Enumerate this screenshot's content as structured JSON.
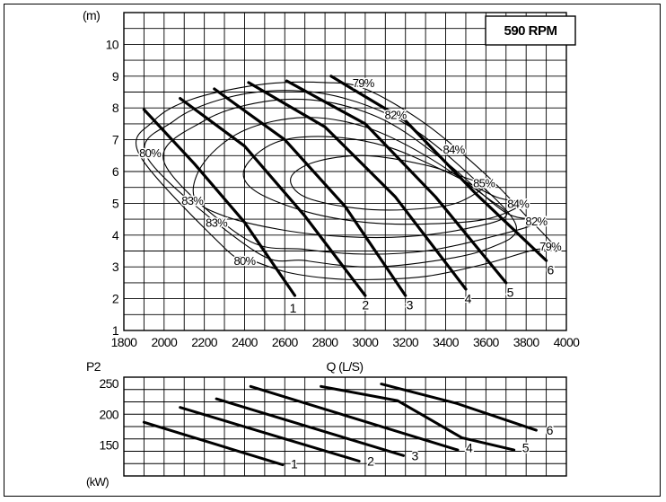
{
  "chart_data": [
    {
      "type": "line",
      "title": "",
      "annotation": "590 RPM",
      "xlabel": "Q (L/S)",
      "ylabel": "(m)",
      "xlim": [
        1800,
        4000
      ],
      "ylim": [
        1,
        11
      ],
      "x_ticks": [
        1800,
        2000,
        2200,
        2400,
        2600,
        2800,
        3000,
        3200,
        3400,
        3600,
        3800,
        4000
      ],
      "y_ticks": [
        1,
        2,
        3,
        4,
        5,
        6,
        7,
        8,
        9,
        10
      ],
      "grid": true,
      "series": [
        {
          "name": "1",
          "points": [
            [
              1900,
              7.95
            ],
            [
              2150,
              6.25
            ],
            [
              2400,
              4.4
            ],
            [
              2650,
              2.1
            ]
          ]
        },
        {
          "name": "2",
          "points": [
            [
              2080,
              8.3
            ],
            [
              2400,
              6.8
            ],
            [
              2700,
              4.6
            ],
            [
              3000,
              2.1
            ]
          ]
        },
        {
          "name": "3",
          "points": [
            [
              2250,
              8.6
            ],
            [
              2600,
              7.0
            ],
            [
              2900,
              4.9
            ],
            [
              3200,
              2.1
            ]
          ]
        },
        {
          "name": "4",
          "points": [
            [
              2420,
              8.8
            ],
            [
              2800,
              7.4
            ],
            [
              3150,
              5.2
            ],
            [
              3500,
              2.3
            ]
          ]
        },
        {
          "name": "5",
          "points": [
            [
              2610,
              8.85
            ],
            [
              3000,
              7.5
            ],
            [
              3350,
              5.2
            ],
            [
              3700,
              2.5
            ]
          ]
        },
        {
          "name": "6",
          "points": [
            [
              2830,
              9.0
            ],
            [
              3200,
              7.6
            ],
            [
              3550,
              5.3
            ],
            [
              3900,
              3.2
            ]
          ]
        }
      ],
      "efficiency_labels": [
        {
          "text": "79%",
          "at": [
            2990,
            8.8
          ]
        },
        {
          "text": "82%",
          "at": [
            3150,
            7.8
          ]
        },
        {
          "text": "84%",
          "at": [
            3440,
            6.7
          ]
        },
        {
          "text": "85%",
          "at": [
            3590,
            5.65
          ]
        },
        {
          "text": "84%",
          "at": [
            3760,
            5.0
          ]
        },
        {
          "text": "82%",
          "at": [
            3850,
            4.45
          ]
        },
        {
          "text": "79%",
          "at": [
            3920,
            3.65
          ]
        },
        {
          "text": "80%",
          "at": [
            1930,
            6.6
          ]
        },
        {
          "text": "83%",
          "at": [
            2140,
            5.1
          ]
        },
        {
          "text": "83%",
          "at": [
            2260,
            4.4
          ]
        },
        {
          "text": "80%",
          "at": [
            2400,
            3.2
          ]
        }
      ],
      "efficiency_contours": [
        {
          "name": "79%",
          "points": [
            [
              1880,
              6.5
            ],
            [
              1950,
              7.6
            ],
            [
              2150,
              8.3
            ],
            [
              2500,
              8.75
            ],
            [
              2800,
              8.8
            ],
            [
              3000,
              8.6
            ],
            [
              3300,
              7.5
            ],
            [
              3600,
              5.9
            ],
            [
              3800,
              4.6
            ],
            [
              3950,
              3.55
            ],
            [
              3850,
              3.55
            ],
            [
              3600,
              3.1
            ],
            [
              3300,
              2.7
            ],
            [
              3000,
              2.6
            ],
            [
              2800,
              2.65
            ],
            [
              2600,
              2.85
            ],
            [
              2400,
              3.3
            ],
            [
              2300,
              3.6
            ]
          ]
        },
        {
          "name": "80%",
          "points": [
            [
              1920,
              6.4
            ],
            [
              2050,
              7.6
            ],
            [
              2300,
              8.3
            ],
            [
              2600,
              8.55
            ],
            [
              2900,
              8.3
            ],
            [
              3200,
              7.5
            ],
            [
              3500,
              6.0
            ],
            [
              3750,
              4.3
            ],
            [
              3600,
              3.55
            ],
            [
              3300,
              3.15
            ],
            [
              3000,
              3.0
            ],
            [
              2700,
              3.2
            ],
            [
              2450,
              3.5
            ]
          ]
        },
        {
          "name": "82%",
          "points": [
            [
              2000,
              6.3
            ],
            [
              2200,
              7.6
            ],
            [
              2500,
              8.2
            ],
            [
              2800,
              8.2
            ],
            [
              3100,
              7.6
            ],
            [
              3400,
              6.3
            ],
            [
              3700,
              4.7
            ],
            [
              3880,
              4.45
            ],
            [
              3600,
              3.9
            ],
            [
              3300,
              3.5
            ],
            [
              3000,
              3.4
            ],
            [
              2700,
              3.55
            ],
            [
              2400,
              3.9
            ]
          ]
        },
        {
          "name": "83%",
          "points": [
            [
              2150,
              5.2
            ],
            [
              2200,
              6.3
            ],
            [
              2400,
              7.3
            ],
            [
              2700,
              7.7
            ],
            [
              3000,
              7.4
            ],
            [
              3300,
              6.5
            ],
            [
              3600,
              5.2
            ],
            [
              3700,
              4.6
            ],
            [
              3500,
              4.2
            ],
            [
              3200,
              3.95
            ],
            [
              2900,
              3.95
            ],
            [
              2600,
              4.15
            ],
            [
              2300,
              4.6
            ]
          ]
        },
        {
          "name": "84%",
          "points": [
            [
              2400,
              6.1
            ],
            [
              2550,
              6.9
            ],
            [
              2800,
              7.1
            ],
            [
              3100,
              6.8
            ],
            [
              3400,
              6.0
            ],
            [
              3650,
              5.2
            ],
            [
              3780,
              5.0
            ],
            [
              3600,
              4.5
            ],
            [
              3300,
              4.35
            ],
            [
              3000,
              4.4
            ],
            [
              2700,
              4.75
            ],
            [
              2450,
              5.4
            ]
          ]
        },
        {
          "name": "85%",
          "points": [
            [
              2630,
              5.8
            ],
            [
              2750,
              6.3
            ],
            [
              3000,
              6.5
            ],
            [
              3300,
              6.2
            ],
            [
              3550,
              5.7
            ],
            [
              3620,
              5.65
            ],
            [
              3450,
              5.0
            ],
            [
              3200,
              4.8
            ],
            [
              2950,
              4.85
            ],
            [
              2700,
              5.2
            ]
          ]
        }
      ],
      "curve_labels": [
        {
          "text": "1",
          "at": [
            2640,
            1.7
          ]
        },
        {
          "text": "2",
          "at": [
            3000,
            1.8
          ]
        },
        {
          "text": "3",
          "at": [
            3220,
            1.8
          ]
        },
        {
          "text": "4",
          "at": [
            3510,
            2.0
          ]
        },
        {
          "text": "5",
          "at": [
            3720,
            2.2
          ]
        },
        {
          "text": "6",
          "at": [
            3920,
            2.9
          ]
        }
      ]
    },
    {
      "type": "line",
      "title": "",
      "xlabel": "",
      "ylabel": "P2",
      "unit_label": "(kW)",
      "xlim": [
        1800,
        4000
      ],
      "ylim": [
        100,
        260
      ],
      "y_ticks": [
        150,
        200,
        250
      ],
      "grid": true,
      "series": [
        {
          "name": "1",
          "points": [
            [
              1900,
              187
            ],
            [
              2590,
              118
            ]
          ]
        },
        {
          "name": "2",
          "points": [
            [
              2080,
              211
            ],
            [
              2970,
              124
            ]
          ]
        },
        {
          "name": "3",
          "points": [
            [
              2260,
              225
            ],
            [
              3190,
              133
            ]
          ]
        },
        {
          "name": "4",
          "points": [
            [
              2430,
              245
            ],
            [
              3460,
              142
            ]
          ]
        },
        {
          "name": "5",
          "points": [
            [
              2780,
              245
            ],
            [
              3160,
              222
            ],
            [
              3480,
              162
            ],
            [
              3740,
              142
            ]
          ]
        },
        {
          "name": "6",
          "points": [
            [
              3080,
              249
            ],
            [
              3450,
              218
            ],
            [
              3850,
              174
            ]
          ]
        }
      ],
      "curve_labels": [
        {
          "text": "1",
          "at": [
            2630,
            120
          ]
        },
        {
          "text": "2",
          "at": [
            3010,
            124
          ]
        },
        {
          "text": "3",
          "at": [
            3230,
            133
          ]
        },
        {
          "text": "4",
          "at": [
            3500,
            146
          ]
        },
        {
          "text": "5",
          "at": [
            3780,
            146
          ]
        },
        {
          "text": "6",
          "at": [
            3900,
            174
          ]
        }
      ]
    }
  ]
}
